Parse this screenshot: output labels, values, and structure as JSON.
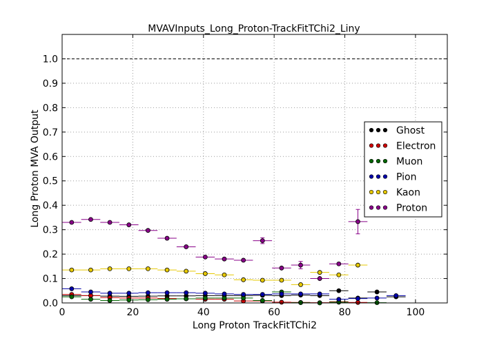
{
  "chart_data": {
    "type": "scatter",
    "title": "MVAVInputs_Long_Proton-TrackFitTChi2_Liny",
    "xlabel": "Long Proton TrackFitTChi2",
    "ylabel": "Long Proton MVA Output",
    "xlim": [
      0,
      109
    ],
    "ylim": [
      0,
      1.1
    ],
    "x_ticks": [
      "0",
      "20",
      "40",
      "60",
      "80",
      "100"
    ],
    "y_ticks": [
      "0.0",
      "0.1",
      "0.2",
      "0.3",
      "0.4",
      "0.5",
      "0.6",
      "0.7",
      "0.8",
      "0.9",
      "1.0"
    ],
    "grid": true,
    "reference_line": 1.0,
    "legend_position": "right",
    "bin_width": 5.4,
    "series": [
      {
        "name": "Ghost",
        "color": "#000000",
        "x": [
          2.7,
          8.1,
          13.5,
          18.9,
          24.3,
          29.7,
          35.1,
          40.5,
          45.9,
          51.3,
          56.7,
          62.1,
          67.5,
          72.9,
          78.3,
          83.7,
          89.1,
          94.5
        ],
        "y": [
          0.03,
          0.03,
          0.028,
          0.027,
          0.028,
          0.029,
          0.029,
          0.03,
          0.03,
          0.03,
          0.031,
          0.03,
          0.032,
          0.03,
          0.05,
          0.02,
          0.045,
          0.025
        ]
      },
      {
        "name": "Electron",
        "color": "#cc0000",
        "x": [
          2.7,
          8.1,
          13.5,
          18.9,
          24.3,
          29.7,
          35.1,
          40.5,
          45.9,
          51.3,
          56.7,
          62.1,
          67.5,
          72.9,
          78.3,
          83.7
        ],
        "y": [
          0.035,
          0.03,
          0.022,
          0.02,
          0.02,
          0.018,
          0.017,
          0.015,
          0.015,
          0.008,
          0.008,
          0.003,
          0.002,
          0.001,
          0.005,
          0.002
        ]
      },
      {
        "name": "Muon",
        "color": "#006600",
        "x": [
          2.7,
          8.1,
          13.5,
          18.9,
          24.3,
          29.7,
          35.1,
          40.5,
          45.9,
          51.3,
          56.7,
          62.1,
          67.5,
          72.9,
          78.3,
          89.1
        ],
        "y": [
          0.025,
          0.015,
          0.01,
          0.012,
          0.013,
          0.015,
          0.017,
          0.02,
          0.02,
          0.02,
          0.01,
          0.045,
          0.001,
          0.0,
          0.003,
          0.001
        ]
      },
      {
        "name": "Pion",
        "color": "#0000aa",
        "x": [
          2.7,
          8.1,
          13.5,
          18.9,
          24.3,
          29.7,
          35.1,
          40.5,
          45.9,
          51.3,
          56.7,
          62.1,
          67.5,
          72.9,
          78.3,
          83.7,
          89.1,
          94.5
        ],
        "y": [
          0.058,
          0.045,
          0.04,
          0.04,
          0.042,
          0.042,
          0.042,
          0.04,
          0.037,
          0.035,
          0.035,
          0.037,
          0.037,
          0.037,
          0.015,
          0.018,
          0.02,
          0.03
        ]
      },
      {
        "name": "Kaon",
        "color": "#e6c800",
        "x": [
          2.7,
          8.1,
          13.5,
          18.9,
          24.3,
          29.7,
          35.1,
          40.5,
          45.9,
          51.3,
          56.7,
          62.1,
          67.5,
          72.9,
          78.3,
          83.7
        ],
        "y": [
          0.135,
          0.135,
          0.14,
          0.14,
          0.14,
          0.135,
          0.13,
          0.12,
          0.115,
          0.095,
          0.093,
          0.093,
          0.075,
          0.125,
          0.115,
          0.155
        ]
      },
      {
        "name": "Proton",
        "color": "#880088",
        "x": [
          2.7,
          8.1,
          13.5,
          18.9,
          24.3,
          29.7,
          35.1,
          40.5,
          45.9,
          51.3,
          56.7,
          62.1,
          67.5,
          72.9,
          78.3,
          83.7
        ],
        "y": [
          0.33,
          0.342,
          0.33,
          0.32,
          0.297,
          0.265,
          0.23,
          0.188,
          0.18,
          0.175,
          0.255,
          0.143,
          0.155,
          0.1,
          0.16,
          0.333
        ],
        "yerr": [
          0.004,
          0.004,
          0.004,
          0.004,
          0.004,
          0.005,
          0.005,
          0.005,
          0.006,
          0.006,
          0.012,
          0.01,
          0.015,
          0.01,
          0.008,
          0.05
        ]
      }
    ]
  }
}
